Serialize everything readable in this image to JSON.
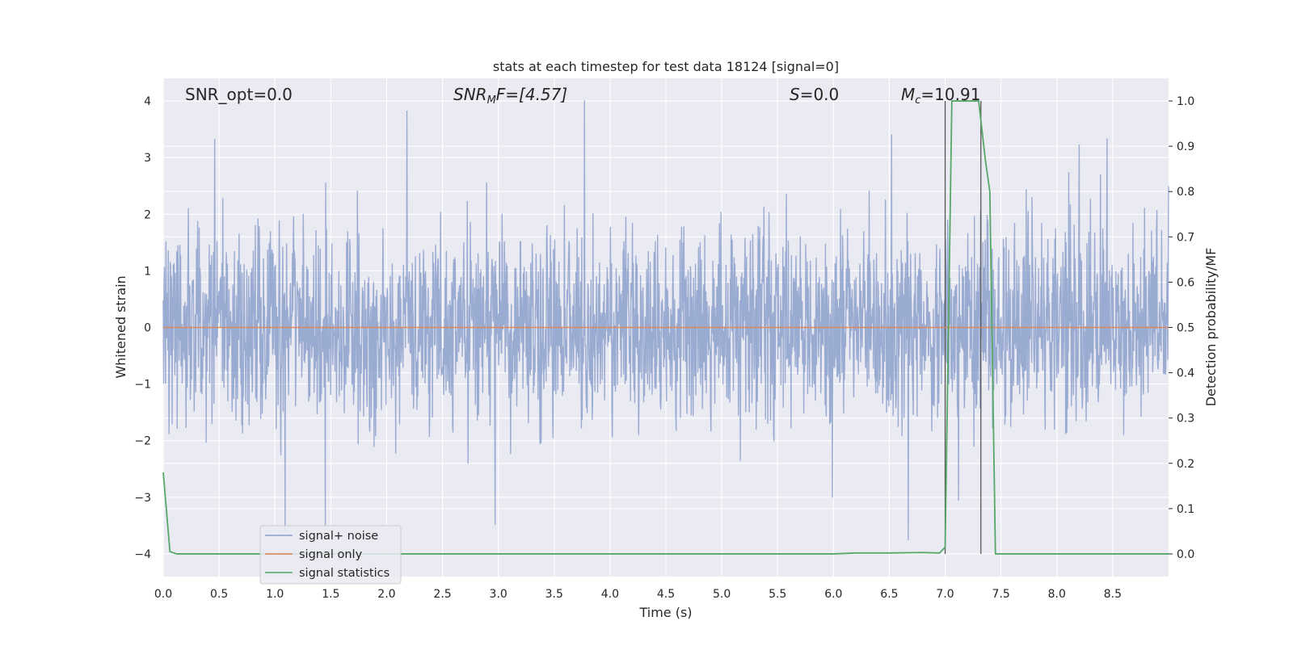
{
  "chart_data": {
    "type": "line",
    "title": "stats at each timestep for test data 18124 [signal=0]",
    "xlabel": "Time (s)",
    "ylabel": "Whitened strain",
    "y2label": "Detection probability/MF",
    "xlim": [
      0.0,
      9.0
    ],
    "ylim": [
      -4.4,
      4.4
    ],
    "y2lim": [
      -0.05,
      1.05
    ],
    "xticks": [
      "0.0",
      "0.5",
      "1.0",
      "1.5",
      "2.0",
      "2.5",
      "3.0",
      "3.5",
      "4.0",
      "4.5",
      "5.0",
      "5.5",
      "6.0",
      "6.5",
      "7.0",
      "7.5",
      "8.0",
      "8.5"
    ],
    "yticks": [
      "4",
      "3",
      "2",
      "1",
      "0",
      "−1",
      "−2",
      "−3",
      "−4"
    ],
    "y2ticks": [
      "0.0",
      "0.1",
      "0.2",
      "0.3",
      "0.4",
      "0.5",
      "0.6",
      "0.7",
      "0.8",
      "0.9",
      "1.0"
    ],
    "grid": true,
    "legend_position": "lower-left",
    "annotations": {
      "snr_opt": "SNR_opt=0.0",
      "snr_mf_main": "SNR",
      "snr_mf_sub": "M",
      "snr_mf_rest": "F=[4.57]",
      "s_main": "S",
      "s_rest": "=0.0",
      "mc_main": "M",
      "mc_sub": "c",
      "mc_rest": "=10.91"
    },
    "vlines_x": [
      7.0,
      7.32
    ],
    "series": [
      {
        "name": "signal+ noise",
        "color": "#8ca0cc",
        "note_kind": "whitened-noise",
        "amplitude_std": 0.85,
        "peaks": [
          {
            "x": 0.46,
            "y": 3.32
          },
          {
            "x": 2.18,
            "y": 3.82
          },
          {
            "x": 3.77,
            "y": 4.0
          },
          {
            "x": 1.09,
            "y": -3.6
          },
          {
            "x": 1.45,
            "y": -3.5
          },
          {
            "x": 2.97,
            "y": -3.48
          },
          {
            "x": 6.67,
            "y": -3.75
          },
          {
            "x": 8.45,
            "y": 3.33
          },
          {
            "x": 8.2,
            "y": 3.22
          },
          {
            "x": 6.52,
            "y": 3.4
          },
          {
            "x": 7.12,
            "y": -3.05
          }
        ]
      },
      {
        "name": "signal only",
        "color": "#dd8452",
        "x": [
          0.0,
          9.0
        ],
        "y": [
          0.0,
          0.0
        ]
      },
      {
        "name": "signal statistics",
        "color": "#55a868",
        "axis": "right",
        "x": [
          0.0,
          0.06,
          0.12,
          0.5,
          1.0,
          2.0,
          3.0,
          4.0,
          5.0,
          6.0,
          6.2,
          6.5,
          6.8,
          6.95,
          7.0,
          7.06,
          7.3,
          7.36,
          7.4,
          7.45,
          8.0,
          9.0
        ],
        "y": [
          0.18,
          0.005,
          0.0,
          0.0,
          0.0,
          0.0,
          0.0,
          0.0,
          0.0,
          0.0,
          0.002,
          0.002,
          0.003,
          0.002,
          0.015,
          1.0,
          1.0,
          0.87,
          0.8,
          0.0,
          0.0,
          0.0
        ]
      }
    ]
  }
}
